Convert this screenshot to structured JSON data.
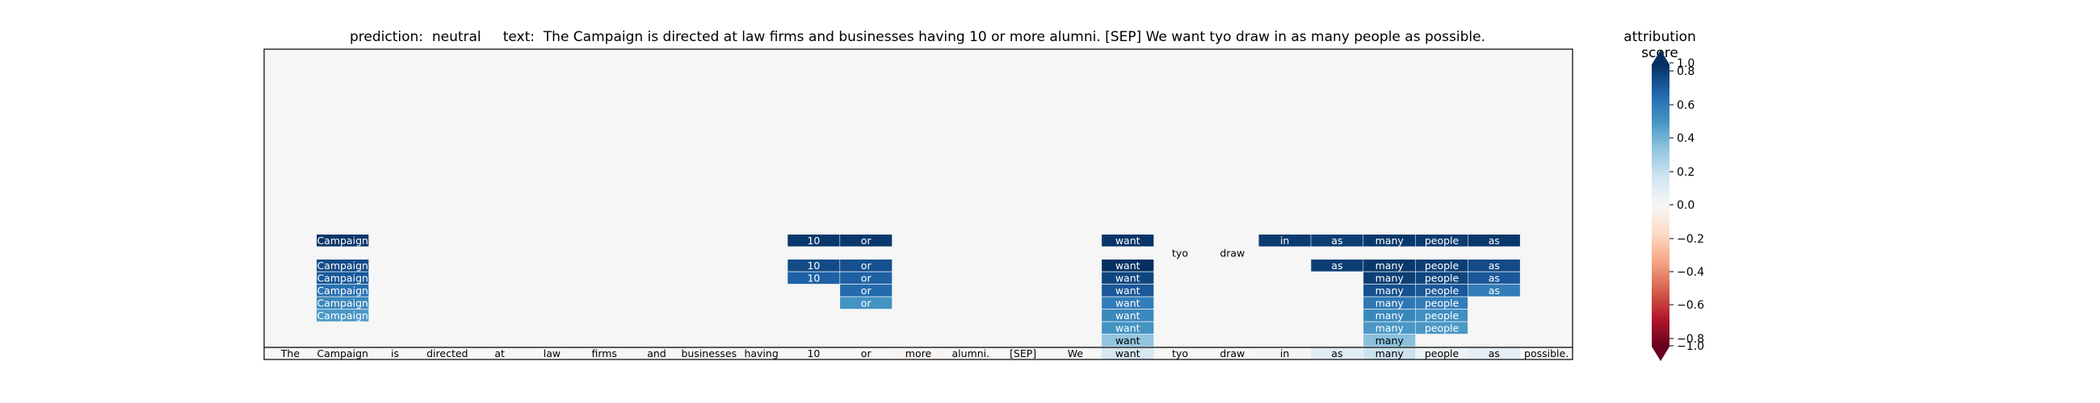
{
  "chart_data": {
    "type": "heatmap",
    "title": {
      "prediction_label": "prediction:",
      "prediction": "neutral",
      "text_label": "text:",
      "text": "The Campaign is directed at law firms and businesses having 10 or more alumni. [SEP] We want tyo draw in as many people as possible."
    },
    "tokens": [
      "The",
      "Campaign",
      "is",
      "directed",
      "at",
      "law",
      "firms",
      "and",
      "businesses",
      "having",
      "10",
      "or",
      "more",
      "alumni.",
      "[SEP]",
      "We",
      "want",
      "tyo",
      "draw",
      "in",
      "as",
      "many",
      "people",
      "as",
      "possible."
    ],
    "rows": [
      [
        null,
        0.98,
        null,
        null,
        null,
        null,
        null,
        null,
        null,
        null,
        0.97,
        0.97,
        null,
        null,
        null,
        null,
        0.98,
        null,
        null,
        0.96,
        0.95,
        0.97,
        0.96,
        0.97,
        null
      ],
      [
        null,
        null,
        null,
        null,
        null,
        null,
        null,
        null,
        null,
        null,
        null,
        null,
        null,
        null,
        null,
        null,
        null,
        0.0,
        0.0,
        null,
        null,
        null,
        null,
        null,
        null
      ],
      [
        null,
        0.9,
        null,
        null,
        null,
        null,
        null,
        null,
        null,
        null,
        0.9,
        0.88,
        null,
        null,
        null,
        null,
        1.0,
        null,
        null,
        null,
        0.95,
        0.97,
        0.95,
        0.9,
        null
      ],
      [
        null,
        0.85,
        null,
        null,
        null,
        null,
        null,
        null,
        null,
        null,
        0.82,
        0.82,
        null,
        null,
        null,
        null,
        0.92,
        null,
        null,
        null,
        null,
        0.95,
        0.92,
        0.85,
        null
      ],
      [
        null,
        0.75,
        null,
        null,
        null,
        null,
        null,
        null,
        null,
        null,
        null,
        0.78,
        null,
        null,
        null,
        null,
        0.85,
        null,
        null,
        null,
        null,
        0.88,
        0.85,
        0.7,
        null
      ],
      [
        null,
        0.65,
        null,
        null,
        null,
        null,
        null,
        null,
        null,
        null,
        null,
        0.6,
        null,
        null,
        null,
        null,
        0.7,
        null,
        null,
        null,
        null,
        0.72,
        0.7,
        null,
        null
      ],
      [
        null,
        0.58,
        null,
        null,
        null,
        null,
        null,
        null,
        null,
        null,
        null,
        null,
        null,
        null,
        null,
        null,
        0.65,
        null,
        null,
        null,
        null,
        0.65,
        0.62,
        null,
        null
      ],
      [
        null,
        null,
        null,
        null,
        null,
        null,
        null,
        null,
        null,
        null,
        null,
        null,
        null,
        null,
        null,
        null,
        0.6,
        null,
        null,
        null,
        null,
        0.58,
        0.58,
        null,
        null
      ],
      [
        null,
        null,
        null,
        null,
        null,
        null,
        null,
        null,
        null,
        null,
        null,
        null,
        null,
        null,
        null,
        null,
        0.4,
        null,
        null,
        null,
        null,
        0.42,
        null,
        null,
        null
      ],
      [
        0.0,
        0.02,
        0.0,
        0.0,
        0.0,
        0.0,
        0.0,
        0.0,
        0.0,
        0.0,
        0.0,
        0.0,
        -0.02,
        0.0,
        0.0,
        0.0,
        0.18,
        0.0,
        0.0,
        0.02,
        0.12,
        0.22,
        0.06,
        0.1,
        0.0
      ]
    ],
    "colorbar": {
      "title": "attribution score",
      "range": [
        -1.0,
        1.0
      ],
      "extend": "both",
      "ticks": [
        "1.0",
        "0.8",
        "0.6",
        "0.4",
        "0.2",
        "0.0",
        "−0.2",
        "−0.4",
        "−0.6",
        "−0.8",
        "−1.0"
      ],
      "tick_values": [
        1.0,
        0.8,
        0.6,
        0.4,
        0.2,
        0.0,
        -0.2,
        -0.4,
        -0.6,
        -0.8,
        -1.0
      ],
      "colormap": "RdBu"
    },
    "colors": {
      "background": "#f5f6f5",
      "dark_blue": "#08306b",
      "dark_red": "#67001f"
    }
  }
}
